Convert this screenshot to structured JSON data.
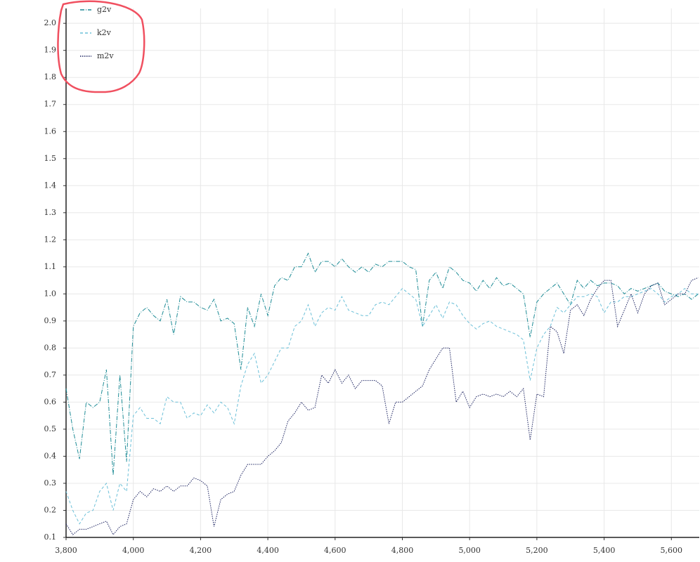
{
  "chart_data": {
    "type": "line",
    "x": [
      3800,
      3820,
      3840,
      3860,
      3880,
      3900,
      3920,
      3940,
      3960,
      3980,
      4000,
      4020,
      4040,
      4060,
      4080,
      4100,
      4120,
      4140,
      4160,
      4180,
      4200,
      4220,
      4240,
      4260,
      4280,
      4300,
      4320,
      4340,
      4360,
      4380,
      4400,
      4420,
      4440,
      4460,
      4480,
      4500,
      4520,
      4540,
      4560,
      4580,
      4600,
      4620,
      4640,
      4660,
      4680,
      4700,
      4720,
      4740,
      4760,
      4780,
      4800,
      4820,
      4840,
      4860,
      4880,
      4900,
      4920,
      4940,
      4960,
      4980,
      5000,
      5020,
      5040,
      5060,
      5080,
      5100,
      5120,
      5140,
      5160,
      5180,
      5200,
      5220,
      5240,
      5260,
      5280,
      5300,
      5320,
      5340,
      5360,
      5380,
      5400,
      5420,
      5440,
      5460,
      5480,
      5500,
      5520,
      5540,
      5560,
      5580,
      5600,
      5620,
      5640,
      5660,
      5680
    ],
    "series": [
      {
        "name": "g2v",
        "color": "#1f8c96",
        "dash": "6 2 1 2",
        "values": [
          0.65,
          0.5,
          0.39,
          0.6,
          0.58,
          0.6,
          0.72,
          0.33,
          0.7,
          0.38,
          0.88,
          0.93,
          0.95,
          0.92,
          0.9,
          0.98,
          0.85,
          0.99,
          0.97,
          0.97,
          0.95,
          0.94,
          0.98,
          0.9,
          0.91,
          0.89,
          0.72,
          0.95,
          0.88,
          1.0,
          0.92,
          1.03,
          1.06,
          1.05,
          1.1,
          1.1,
          1.15,
          1.08,
          1.12,
          1.12,
          1.1,
          1.13,
          1.1,
          1.08,
          1.1,
          1.08,
          1.11,
          1.1,
          1.12,
          1.12,
          1.12,
          1.1,
          1.09,
          0.88,
          1.05,
          1.08,
          1.02,
          1.1,
          1.08,
          1.05,
          1.04,
          1.01,
          1.05,
          1.02,
          1.06,
          1.03,
          1.04,
          1.02,
          1.0,
          0.84,
          0.97,
          1.0,
          1.02,
          1.04,
          1.0,
          0.96,
          1.05,
          1.02,
          1.05,
          1.03,
          1.04,
          1.04,
          1.03,
          1.0,
          1.02,
          1.01,
          1.02,
          1.03,
          1.04,
          1.01,
          1.0,
          0.99,
          1.0,
          0.98,
          1.0
        ]
      },
      {
        "name": "k2v",
        "color": "#6cc0d8",
        "dash": "4 3",
        "values": [
          0.27,
          0.2,
          0.15,
          0.19,
          0.2,
          0.27,
          0.3,
          0.2,
          0.3,
          0.27,
          0.55,
          0.58,
          0.54,
          0.54,
          0.52,
          0.62,
          0.6,
          0.6,
          0.54,
          0.56,
          0.55,
          0.59,
          0.56,
          0.6,
          0.58,
          0.52,
          0.66,
          0.74,
          0.78,
          0.67,
          0.7,
          0.75,
          0.8,
          0.8,
          0.88,
          0.9,
          0.96,
          0.88,
          0.93,
          0.95,
          0.94,
          0.99,
          0.94,
          0.93,
          0.92,
          0.92,
          0.96,
          0.97,
          0.96,
          0.99,
          1.02,
          1.0,
          0.98,
          0.88,
          0.92,
          0.96,
          0.91,
          0.97,
          0.96,
          0.92,
          0.89,
          0.87,
          0.89,
          0.9,
          0.88,
          0.87,
          0.86,
          0.85,
          0.83,
          0.68,
          0.8,
          0.85,
          0.88,
          0.95,
          0.93,
          0.96,
          0.99,
          0.99,
          1.0,
          0.99,
          0.93,
          0.97,
          0.97,
          0.99,
          0.99,
          1.0,
          1.01,
          1.02,
          1.0,
          0.97,
          0.99,
          1.0,
          1.02,
          1.0,
          1.0
        ]
      },
      {
        "name": "m2v",
        "color": "#1b2260",
        "dash": "1.5 1.5",
        "values": [
          0.15,
          0.11,
          0.13,
          0.13,
          0.14,
          0.15,
          0.16,
          0.11,
          0.14,
          0.15,
          0.24,
          0.27,
          0.25,
          0.28,
          0.27,
          0.29,
          0.27,
          0.29,
          0.29,
          0.32,
          0.31,
          0.29,
          0.14,
          0.24,
          0.26,
          0.27,
          0.33,
          0.37,
          0.37,
          0.37,
          0.4,
          0.42,
          0.45,
          0.53,
          0.56,
          0.6,
          0.57,
          0.58,
          0.7,
          0.67,
          0.72,
          0.67,
          0.7,
          0.65,
          0.68,
          0.68,
          0.68,
          0.66,
          0.52,
          0.6,
          0.6,
          0.62,
          0.64,
          0.66,
          0.72,
          0.76,
          0.8,
          0.8,
          0.6,
          0.64,
          0.58,
          0.62,
          0.63,
          0.62,
          0.63,
          0.62,
          0.64,
          0.62,
          0.65,
          0.46,
          0.63,
          0.62,
          0.88,
          0.86,
          0.78,
          0.94,
          0.96,
          0.92,
          0.98,
          1.02,
          1.05,
          1.05,
          0.88,
          0.94,
          1.0,
          0.93,
          1.0,
          1.03,
          1.04,
          0.96,
          0.98,
          1.0,
          1.0,
          1.05,
          1.06
        ]
      }
    ],
    "xlim": [
      3800,
      5683
    ],
    "ylim": [
      0.1,
      2.055
    ],
    "xticks": [
      {
        "value": 3800,
        "label": "3,800"
      },
      {
        "value": 4000,
        "label": "4,000"
      },
      {
        "value": 4200,
        "label": "4,200"
      },
      {
        "value": 4400,
        "label": "4,400"
      },
      {
        "value": 4600,
        "label": "4,600"
      },
      {
        "value": 4800,
        "label": "4,800"
      },
      {
        "value": 5000,
        "label": "5,000"
      },
      {
        "value": 5200,
        "label": "5,200"
      },
      {
        "value": 5400,
        "label": "5,400"
      },
      {
        "value": 5600,
        "label": "5,600"
      }
    ],
    "yticks": [
      0.1,
      0.2,
      0.3,
      0.4,
      0.5,
      0.6,
      0.7,
      0.8,
      0.9,
      {
        "value": 1,
        "label": "1.0"
      },
      1.1,
      1.2,
      1.3,
      1.4,
      1.5,
      1.6,
      1.7,
      1.8,
      1.9,
      {
        "value": 2,
        "label": "2.0"
      }
    ],
    "grid": true,
    "legend": "top-left"
  }
}
